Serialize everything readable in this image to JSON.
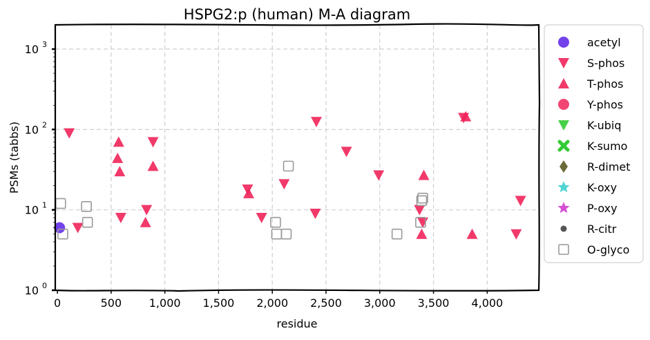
{
  "chart_data": {
    "type": "scatter",
    "title": "HSPG2:p (human) M-A diagram",
    "xlabel": "residue",
    "ylabel": "PSMs (tabbs)",
    "xlim": [
      -20,
      4480
    ],
    "ylim": [
      1,
      2000
    ],
    "yscale": "log",
    "x_ticks": [
      0,
      500,
      1000,
      1500,
      2000,
      2500,
      3000,
      3500,
      4000
    ],
    "x_tick_labels": [
      "0",
      "500",
      "1,000",
      "1,500",
      "2,000",
      "2,500",
      "3,000",
      "3,500",
      "4,000"
    ],
    "y_ticks": [
      1,
      10,
      100,
      1000
    ],
    "y_tick_labels": [
      "10",
      "10",
      "10",
      "10"
    ],
    "y_tick_exponents": [
      "0",
      "1",
      "2",
      "3"
    ],
    "grid": true,
    "legend_position": "outside-right",
    "series": [
      {
        "name": "acetyl",
        "marker": "circle",
        "color": "#5b21e6",
        "points": [
          [
            20,
            6
          ]
        ]
      },
      {
        "name": "S-phos",
        "marker": "triangle-down",
        "color": "#f0245a",
        "points": [
          [
            110,
            90
          ],
          [
            190,
            6
          ],
          [
            590,
            8
          ],
          [
            830,
            10
          ],
          [
            890,
            70
          ],
          [
            1770,
            18
          ],
          [
            1900,
            8
          ],
          [
            2110,
            21
          ],
          [
            2400,
            9
          ],
          [
            2410,
            125
          ],
          [
            2690,
            53
          ],
          [
            2990,
            27
          ],
          [
            3370,
            10
          ],
          [
            3400,
            7
          ],
          [
            3780,
            140
          ],
          [
            4270,
            5
          ],
          [
            4310,
            13
          ]
        ]
      },
      {
        "name": "T-phos",
        "marker": "triangle-up",
        "color": "#f0245a",
        "points": [
          [
            570,
            70
          ],
          [
            560,
            44
          ],
          [
            580,
            30
          ],
          [
            820,
            7
          ],
          [
            890,
            35
          ],
          [
            1780,
            16
          ],
          [
            3390,
            5
          ],
          [
            3410,
            27
          ],
          [
            3800,
            145
          ],
          [
            3860,
            5
          ]
        ]
      },
      {
        "name": "Y-phos",
        "marker": "circle",
        "color": "#f0245a",
        "points": []
      },
      {
        "name": "K-ubiq",
        "marker": "triangle-down",
        "color": "#33cc33",
        "points": []
      },
      {
        "name": "K-sumo",
        "marker": "x",
        "color": "#33cc33",
        "points": []
      },
      {
        "name": "R-dimet",
        "marker": "diamond",
        "color": "#6b6b3a",
        "points": []
      },
      {
        "name": "K-oxy",
        "marker": "star",
        "color": "#33cccc",
        "points": []
      },
      {
        "name": "P-oxy",
        "marker": "star",
        "color": "#cc33cc",
        "points": []
      },
      {
        "name": "R-citr",
        "marker": "circle-small",
        "color": "#555555",
        "points": []
      },
      {
        "name": "O-glyco",
        "marker": "square-open",
        "color": "#999999",
        "points": [
          [
            30,
            12
          ],
          [
            50,
            5
          ],
          [
            270,
            11
          ],
          [
            280,
            7
          ],
          [
            2030,
            7
          ],
          [
            2040,
            5
          ],
          [
            2130,
            5
          ],
          [
            2150,
            35
          ],
          [
            3160,
            5
          ],
          [
            3380,
            7
          ],
          [
            3390,
            13
          ],
          [
            3400,
            14
          ]
        ]
      }
    ]
  }
}
